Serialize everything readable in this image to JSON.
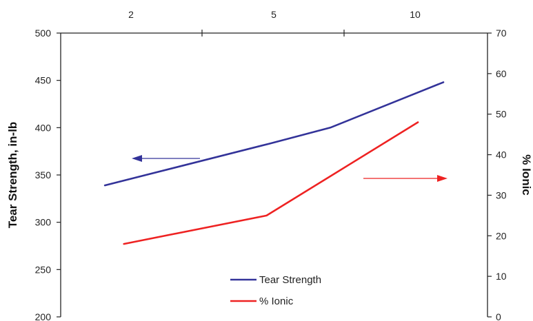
{
  "chart_data": {
    "type": "line",
    "x_top_ticks": [
      "2",
      "5",
      "10"
    ],
    "left_axis": {
      "label": "Tear Strength, in-lb",
      "ylim": [
        200,
        500
      ],
      "ticks": [
        "500",
        "450",
        "400",
        "350",
        "300",
        "250",
        "200"
      ]
    },
    "right_axis": {
      "label": "% Ionic",
      "ylim": [
        0,
        70
      ],
      "ticks": [
        "70",
        "60",
        "50",
        "40",
        "30",
        "20",
        "10",
        "0"
      ]
    },
    "series": [
      {
        "name": "Tear Strength",
        "axis": "left",
        "color": "#333399",
        "points": [
          {
            "x": 1.45,
            "y": 339
          },
          {
            "x": 4.9,
            "y": 383
          },
          {
            "x": 7.0,
            "y": 400
          },
          {
            "x": 11.0,
            "y": 448
          }
        ]
      },
      {
        "name": "% Ionic",
        "axis": "right",
        "color": "#ee2222",
        "points": [
          {
            "x": 1.85,
            "y": 18
          },
          {
            "x": 4.85,
            "y": 25
          },
          {
            "x": 10.1,
            "y": 48
          }
        ]
      }
    ],
    "legend": {
      "placement": "bottom-center",
      "entries": [
        "Tear Strength",
        "% Ionic"
      ]
    },
    "annotations": [
      {
        "type": "arrow",
        "direction": "left",
        "color": "#333399",
        "points_to": "left axis"
      },
      {
        "type": "arrow",
        "direction": "right",
        "color": "#ee2222",
        "points_to": "right axis"
      }
    ]
  }
}
